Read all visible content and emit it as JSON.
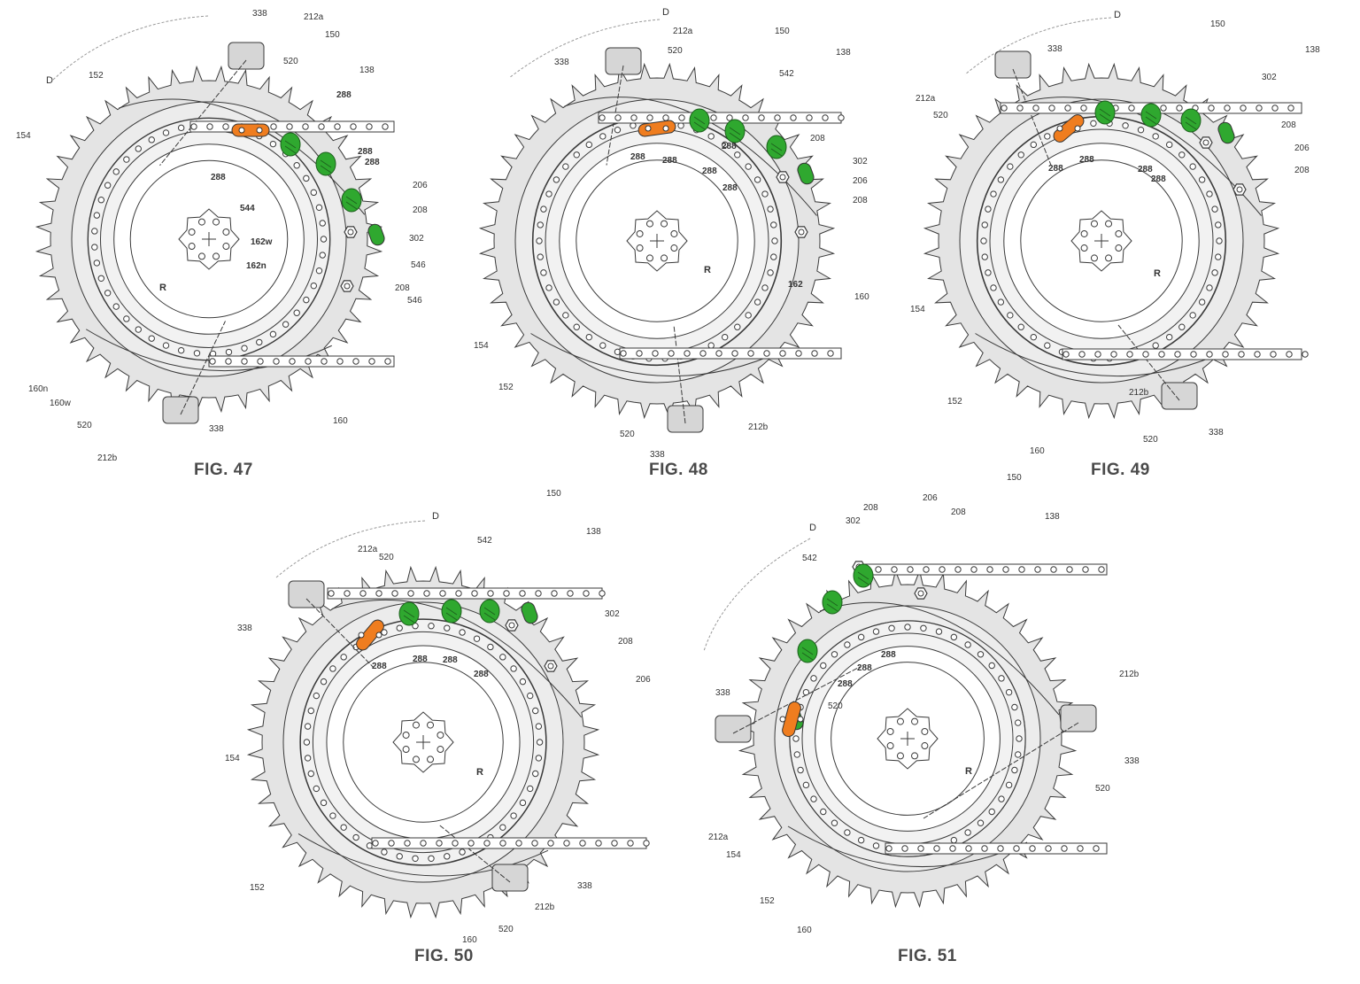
{
  "accent": {
    "ink": "#3a3a3a",
    "fill": "#e4e4e4",
    "link_green": "#2fa82f",
    "link_orange": "#ef7d1f"
  },
  "figures": [
    {
      "caption": "FIG. 47",
      "labels": [
        "D",
        "338",
        "212a",
        "150",
        "138",
        "152",
        "154",
        "520",
        "288",
        "288",
        "288",
        "288",
        "544",
        "206",
        "208",
        "302",
        "162w",
        "162n",
        "546",
        "208",
        "546",
        "R",
        "160n",
        "160w",
        "520",
        "338",
        "212b",
        "160"
      ]
    },
    {
      "caption": "FIG. 48",
      "labels": [
        "D",
        "338",
        "212a",
        "520",
        "150",
        "138",
        "542",
        "288",
        "208",
        "288",
        "288",
        "288",
        "288",
        "302",
        "206",
        "208",
        "162",
        "160",
        "R",
        "154",
        "152",
        "520",
        "338",
        "212b"
      ]
    },
    {
      "caption": "FIG. 49",
      "labels": [
        "D",
        "338",
        "150",
        "138",
        "212a",
        "520",
        "302",
        "208",
        "206",
        "288",
        "288",
        "288",
        "288",
        "208",
        "R",
        "154",
        "152",
        "212b",
        "160",
        "520",
        "338"
      ]
    },
    {
      "caption": "FIG. 50",
      "labels": [
        "D",
        "150",
        "212a",
        "520",
        "542",
        "138",
        "338",
        "302",
        "208",
        "288",
        "288",
        "288",
        "288",
        "206",
        "154",
        "R",
        "152",
        "338",
        "160",
        "520",
        "212b"
      ]
    },
    {
      "caption": "FIG. 51",
      "labels": [
        "D",
        "208",
        "206",
        "208",
        "150",
        "302",
        "138",
        "542",
        "288",
        "288",
        "288",
        "212b",
        "338",
        "R",
        "338",
        "520",
        "212a",
        "520",
        "154",
        "152",
        "160"
      ]
    }
  ]
}
